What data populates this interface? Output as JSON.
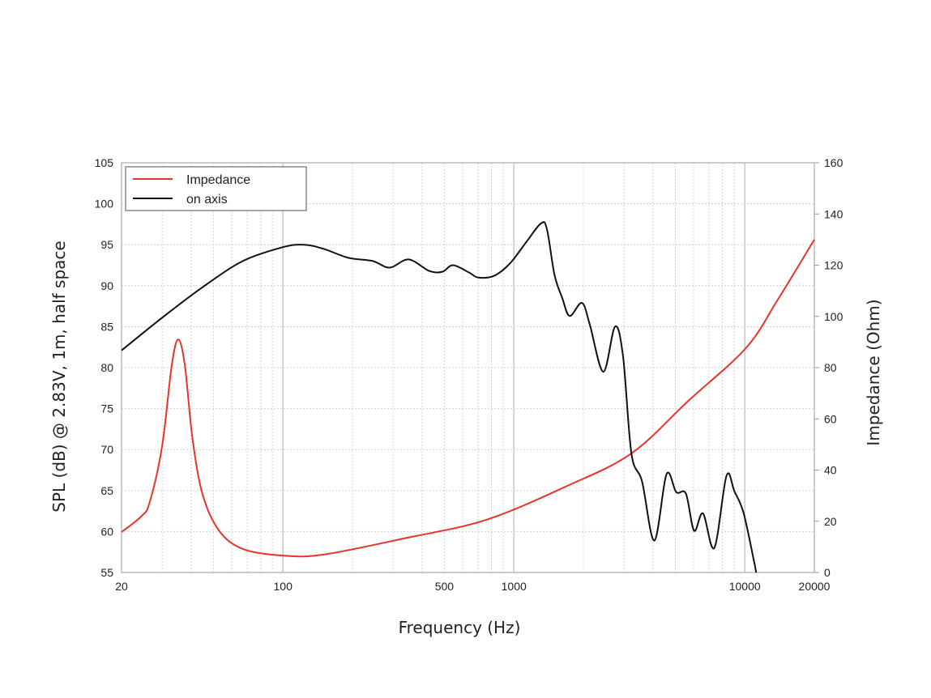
{
  "chart_data": {
    "type": "line",
    "title": "",
    "xlabel": "Frequency (Hz)",
    "ylabel": "SPL (dB) @ 2.83V, 1m, half space",
    "y2label": "Impedance (Ohm)",
    "xscale": "log",
    "xlim": [
      20,
      20000
    ],
    "ylim": [
      55,
      105
    ],
    "y2lim": [
      0,
      160
    ],
    "grid": true,
    "legend_position": "top-left",
    "x_ticks": [
      20,
      100,
      500,
      1000,
      10000,
      20000
    ],
    "y_ticks": [
      55,
      60,
      65,
      70,
      75,
      80,
      85,
      90,
      95,
      100,
      105
    ],
    "y2_ticks": [
      0,
      20,
      40,
      60,
      80,
      100,
      120,
      140,
      160
    ],
    "series": [
      {
        "name": "Impedance",
        "axis": "right",
        "color": "#e8332a",
        "x": [
          20,
          24.4,
          26.5,
          30,
          33,
          35.2,
          37.6,
          40.5,
          44.8,
          52.8,
          67,
          100,
          150,
          335,
          760,
          1700,
          3230,
          5690,
          10100,
          13900,
          20000
        ],
        "y": [
          15.8,
          22,
          27.5,
          49.6,
          81,
          91,
          81,
          53,
          30.7,
          16.4,
          9.2,
          6.6,
          7,
          13.3,
          20.6,
          33.8,
          46.5,
          67,
          87.6,
          106.6,
          130
        ]
      },
      {
        "name": "on axis",
        "axis": "left",
        "color": "#111111",
        "x": [
          20,
          30,
          44.8,
          67,
          100,
          123,
          150,
          192,
          245,
          290,
          350,
          430,
          490,
          545,
          640,
          700,
          820,
          960,
          1130,
          1310,
          1390,
          1500,
          1620,
          1744,
          1970,
          2130,
          2440,
          2740,
          2970,
          3230,
          3590,
          4060,
          4580,
          5050,
          5560,
          6030,
          6590,
          7380,
          8330,
          9020,
          9870,
          10900,
          11200
        ],
        "y": [
          82.1,
          86.1,
          89.8,
          93,
          94.7,
          95.0,
          94.5,
          93.4,
          93.0,
          92.2,
          93.2,
          91.8,
          91.7,
          92.5,
          91.6,
          91.0,
          91.2,
          92.7,
          95.3,
          97.6,
          96.9,
          91.3,
          88.5,
          86.3,
          87.9,
          85.3,
          79.5,
          85.0,
          81.4,
          69.5,
          66.1,
          58.9,
          67.0,
          64.8,
          64.6,
          60.1,
          62.2,
          58.0,
          66.8,
          64.9,
          62.3,
          56.7,
          55.0
        ]
      }
    ]
  }
}
